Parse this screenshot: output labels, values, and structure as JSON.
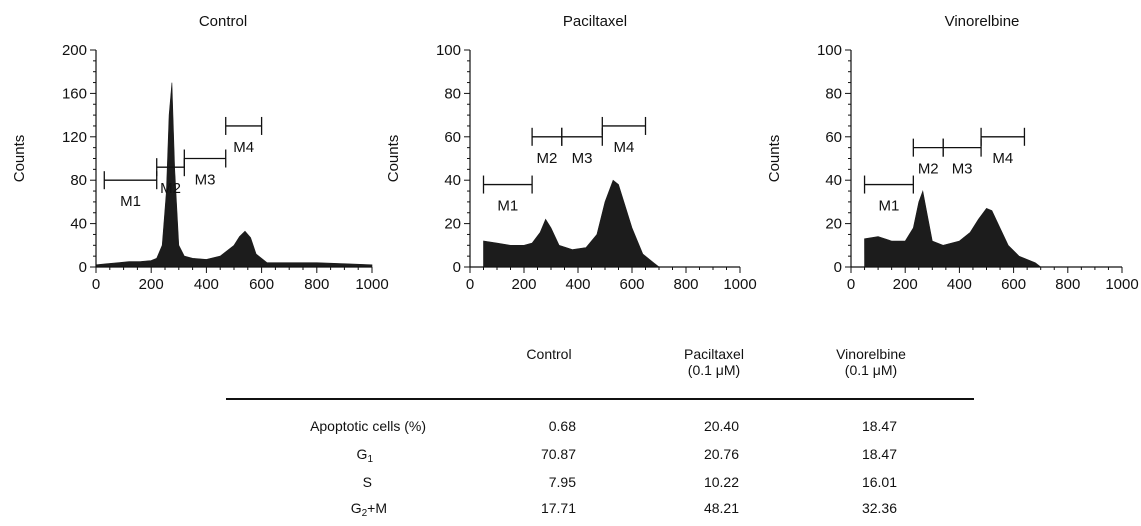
{
  "chart_data": [
    {
      "type": "area",
      "title": "Control",
      "ylabel": "Counts",
      "xlim": [
        0,
        1000
      ],
      "ylim": [
        0,
        200
      ],
      "xticks": [
        "0",
        "200",
        "400",
        "600",
        "800",
        "1000"
      ],
      "yticks": [
        "0",
        "40",
        "80",
        "120",
        "160",
        "200"
      ],
      "x": [
        0,
        40,
        80,
        120,
        160,
        200,
        220,
        240,
        255,
        265,
        275,
        285,
        300,
        320,
        350,
        400,
        450,
        500,
        520,
        540,
        560,
        580,
        620,
        700,
        800,
        900,
        1000
      ],
      "values": [
        2,
        3,
        4,
        5,
        5,
        6,
        8,
        20,
        70,
        140,
        170,
        90,
        20,
        10,
        8,
        7,
        10,
        20,
        28,
        33,
        27,
        12,
        4,
        4,
        4,
        3,
        2
      ],
      "markers": [
        {
          "label": "M1",
          "x": [
            30,
            220
          ],
          "y": 80
        },
        {
          "label": "M2",
          "x": [
            220,
            320
          ],
          "y": 92
        },
        {
          "label": "M3",
          "x": [
            320,
            470
          ],
          "y": 100
        },
        {
          "label": "M4",
          "x": [
            470,
            600
          ],
          "y": 130
        }
      ]
    },
    {
      "type": "area",
      "title": "Paciltaxel",
      "ylabel": "Counts",
      "xlim": [
        0,
        1000
      ],
      "ylim": [
        0,
        100
      ],
      "xticks": [
        "0",
        "200",
        "400",
        "600",
        "800",
        "1000"
      ],
      "yticks": [
        "0",
        "20",
        "40",
        "60",
        "80",
        "100"
      ],
      "x": [
        50,
        100,
        150,
        200,
        230,
        260,
        280,
        300,
        330,
        380,
        430,
        470,
        500,
        530,
        550,
        570,
        600,
        640,
        680,
        700
      ],
      "values": [
        12,
        11,
        10,
        10,
        11,
        16,
        22,
        18,
        10,
        8,
        9,
        15,
        30,
        40,
        38,
        30,
        18,
        6,
        2,
        0
      ],
      "markers": [
        {
          "label": "M1",
          "x": [
            50,
            230
          ],
          "y": 38
        },
        {
          "label": "M2",
          "x": [
            230,
            340
          ],
          "y": 60
        },
        {
          "label": "M3",
          "x": [
            340,
            490
          ],
          "y": 60
        },
        {
          "label": "M4",
          "x": [
            490,
            650
          ],
          "y": 65
        }
      ]
    },
    {
      "type": "area",
      "title": "Vinorelbine",
      "ylabel": "Counts",
      "xlim": [
        0,
        1000
      ],
      "ylim": [
        0,
        100
      ],
      "xticks": [
        "0",
        "200",
        "400",
        "600",
        "800",
        "1000"
      ],
      "yticks": [
        "0",
        "20",
        "40",
        "60",
        "80",
        "100"
      ],
      "x": [
        50,
        100,
        150,
        200,
        230,
        250,
        265,
        280,
        300,
        340,
        400,
        440,
        470,
        500,
        520,
        550,
        580,
        620,
        680,
        700
      ],
      "values": [
        13,
        14,
        12,
        12,
        18,
        30,
        35,
        25,
        12,
        10,
        12,
        16,
        22,
        27,
        26,
        18,
        10,
        5,
        2,
        0
      ],
      "markers": [
        {
          "label": "M1",
          "x": [
            50,
            230
          ],
          "y": 38
        },
        {
          "label": "M2",
          "x": [
            230,
            340
          ],
          "y": 55
        },
        {
          "label": "M3",
          "x": [
            340,
            480
          ],
          "y": 55
        },
        {
          "label": "M4",
          "x": [
            480,
            640
          ],
          "y": 60
        }
      ]
    }
  ],
  "table": {
    "headers": [
      {
        "line1": "Control",
        "line2": ""
      },
      {
        "line1": "Paciltaxel",
        "line2": "(0.1 μM)"
      },
      {
        "line1": "Vinorelbine",
        "line2": "(0.1 μM)"
      }
    ],
    "rows": [
      {
        "label": "Apoptotic cells (%)",
        "sub": "",
        "suffix": "",
        "values": [
          "0.68",
          "20.40",
          "18.47"
        ]
      },
      {
        "label": "G",
        "sub": "1",
        "suffix": "",
        "values": [
          "70.87",
          "20.76",
          "18.47"
        ]
      },
      {
        "label": "S",
        "sub": "",
        "suffix": "",
        "values": [
          "7.95",
          "10.22",
          "16.01"
        ]
      },
      {
        "label": "G",
        "sub": "2",
        "suffix": "+M",
        "values": [
          "17.71",
          "48.21",
          "32.36"
        ]
      }
    ]
  }
}
